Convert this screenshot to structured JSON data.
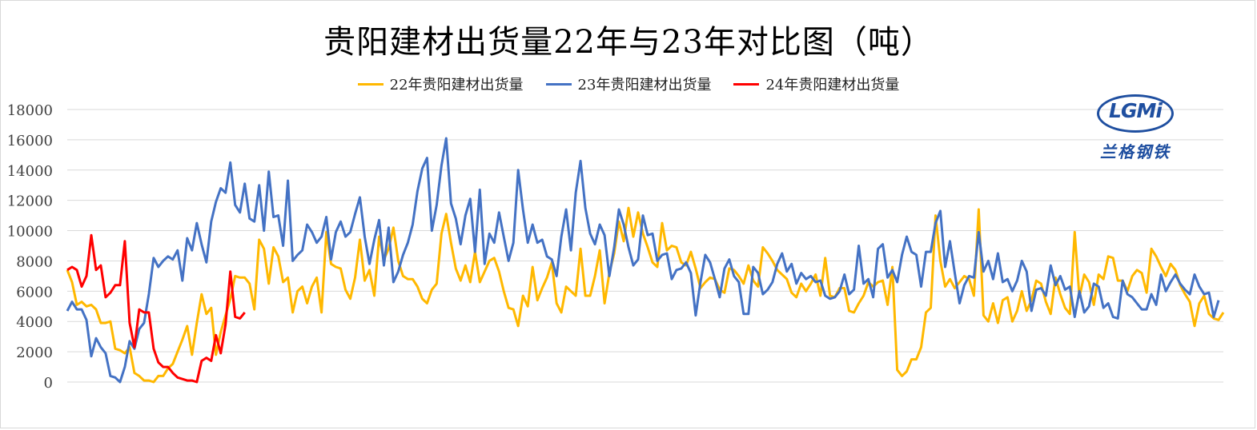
{
  "colors": {
    "y22": "#FFB800",
    "y23": "#4472C4",
    "y24": "#FF0000",
    "grid": "#d9d9d9",
    "axis_text": "#404040"
  },
  "logo": {
    "mark": "LGMi",
    "name": "兰格钢铁"
  },
  "chart_data": {
    "type": "line",
    "title": "贵阳建材出货量22年与23年对比图（吨）",
    "xlabel": "",
    "ylabel": "",
    "ylim": [
      0,
      18000
    ],
    "yticks": [
      0,
      2000,
      4000,
      6000,
      8000,
      10000,
      12000,
      14000,
      16000,
      18000
    ],
    "grid": true,
    "legend_position": "top",
    "series": [
      {
        "name": "22年贵阳建材出货量",
        "color": "#FFB800",
        "x_start": 0,
        "values": [
          7400,
          6600,
          5100,
          5300,
          5000,
          5100,
          4800,
          3900,
          3900,
          4000,
          2200,
          2100,
          1900,
          2300,
          600,
          400,
          100,
          100,
          0,
          400,
          400,
          900,
          1200,
          2000,
          2800,
          3700,
          1800,
          3900,
          5800,
          4500,
          4900,
          1800,
          3300,
          4400,
          5500,
          7000,
          6900,
          6900,
          6500,
          4800,
          9400,
          8800,
          6500,
          8900,
          8300,
          6600,
          6900,
          4600,
          6000,
          6300,
          5200,
          6300,
          6900,
          4600,
          9900,
          7800,
          7600,
          7500,
          6100,
          5500,
          6900,
          9400,
          6700,
          7400,
          5700,
          9600,
          8100,
          8800,
          10200,
          8000,
          7000,
          6800,
          6800,
          6300,
          5500,
          5200,
          6100,
          6500,
          9800,
          11100,
          9200,
          7500,
          6700,
          7700,
          6600,
          8600,
          6600,
          7300,
          8000,
          8200,
          7300,
          6000,
          4900,
          4800,
          3700,
          5700,
          5000,
          7600,
          5400,
          6200,
          6900,
          7900,
          5200,
          4600,
          6300,
          6000,
          5700,
          8800,
          5700,
          5700,
          7000,
          8700,
          5200,
          7200,
          8500,
          10600,
          9300,
          11500,
          9600,
          11200,
          9800,
          8900,
          7900,
          7600,
          10500,
          8700,
          9000,
          8900,
          7900,
          7700,
          8600,
          7500,
          6200,
          6600,
          6900,
          6800,
          6100,
          5900,
          7500,
          7400,
          7000,
          6500,
          7700,
          6700,
          6300,
          8900,
          8500,
          8000,
          7400,
          7100,
          6800,
          5900,
          5600,
          6500,
          6000,
          6500,
          7100,
          5700,
          8200,
          5700,
          5600,
          6200,
          6200,
          4700,
          4600,
          5200,
          5700,
          6600,
          6300,
          6600,
          6700,
          5100,
          7600,
          800,
          400,
          700,
          1500,
          1500,
          2300,
          4600,
          4900,
          11000,
          8000,
          6300,
          6800,
          6200,
          6600,
          7000,
          6800,
          5700,
          11400,
          4400,
          4000,
          5200,
          3900,
          5400,
          5600,
          4000,
          4700,
          6000,
          4700,
          5400,
          6700,
          6500,
          5300,
          4500,
          6900,
          5800,
          4900,
          4500,
          9900,
          5600,
          7100,
          6600,
          5100,
          7100,
          6800,
          8300,
          8200,
          6700,
          6700,
          6000,
          7000,
          7400,
          7200,
          5900,
          8800,
          8300,
          7600,
          7000,
          7800,
          7400,
          6400,
          5800,
          5300,
          3700,
          5200,
          5700,
          4500,
          4200,
          4100,
          4600
        ]
      },
      {
        "name": "23年贵阳建材出货量",
        "color": "#4472C4",
        "x_start": 0,
        "values": [
          4700,
          5300,
          4800,
          4800,
          4100,
          1700,
          2900,
          2300,
          1900,
          400,
          300,
          0,
          1000,
          2700,
          2200,
          3500,
          3900,
          5800,
          8200,
          7600,
          8000,
          8300,
          8100,
          8700,
          6700,
          9500,
          8700,
          10500,
          9100,
          7900,
          10600,
          11900,
          12800,
          12500,
          14500,
          11700,
          11200,
          13100,
          10800,
          10600,
          13000,
          10000,
          13900,
          10900,
          11000,
          9000,
          13300,
          8000,
          8400,
          8700,
          10400,
          9900,
          9200,
          9600,
          10900,
          8100,
          9900,
          10600,
          9600,
          9900,
          11100,
          12200,
          9600,
          7800,
          9400,
          10700,
          7700,
          10200,
          6600,
          7300,
          8400,
          9200,
          10400,
          12600,
          14100,
          14800,
          10000,
          11700,
          14300,
          16100,
          11800,
          10800,
          9100,
          11000,
          12100,
          8600,
          12700,
          7800,
          9800,
          9200,
          11200,
          9600,
          8000,
          9200,
          14000,
          11400,
          9200,
          10400,
          9200,
          9400,
          8300,
          8100,
          7000,
          9600,
          11400,
          8700,
          12500,
          14600,
          11500,
          9800,
          9100,
          10400,
          9700,
          7000,
          8900,
          11400,
          10400,
          8900,
          7700,
          8100,
          11000,
          9700,
          9800,
          8000,
          8400,
          8500,
          6800,
          7400,
          7500,
          7900,
          7200,
          4400,
          6600,
          8400,
          7900,
          6800,
          5600,
          7500,
          8100,
          7000,
          6600,
          4500,
          4500,
          7600,
          7200,
          5800,
          6100,
          6600,
          7800,
          8500,
          7300,
          7800,
          6500,
          7200,
          6800,
          7000,
          6600,
          6700,
          5700,
          5500,
          5600,
          6000,
          7100,
          5800,
          6100,
          9000,
          6500,
          6800,
          5600,
          8800,
          9100,
          6900,
          7400,
          6600,
          8400,
          9600,
          8600,
          8400,
          6300,
          8600,
          8600,
          10500,
          11300,
          7600,
          9300,
          7200,
          5200,
          6400,
          7000,
          6900,
          9900,
          7300,
          8000,
          6800,
          8500,
          6600,
          6800,
          6000,
          6700,
          8000,
          7300,
          4700,
          6100,
          6200,
          5700,
          7700,
          6400,
          7000,
          6100,
          6300,
          4300,
          6000,
          4600,
          5000,
          6500,
          6300,
          4900,
          5200,
          4300,
          4200,
          6700,
          5800,
          5600,
          5200,
          4800,
          4800,
          5800,
          5100,
          7100,
          6000,
          6600,
          7100,
          6500,
          6100,
          5800,
          7100,
          6300,
          5800,
          5900,
          4300,
          5400
        ]
      },
      {
        "name": "24年贵阳建材出货量",
        "color": "#FF0000",
        "x_start": 0,
        "values": [
          7400,
          7600,
          7400,
          6300,
          7000,
          9700,
          7400,
          7700,
          5600,
          5900,
          6400,
          6400,
          9300,
          3900,
          2300,
          4800,
          4600,
          4600,
          2200,
          1300,
          1000,
          1000,
          600,
          300,
          200,
          100,
          100,
          0,
          1400,
          1600,
          1400,
          3100,
          1900,
          3800,
          7300,
          4300,
          4200,
          4600
        ]
      }
    ]
  }
}
